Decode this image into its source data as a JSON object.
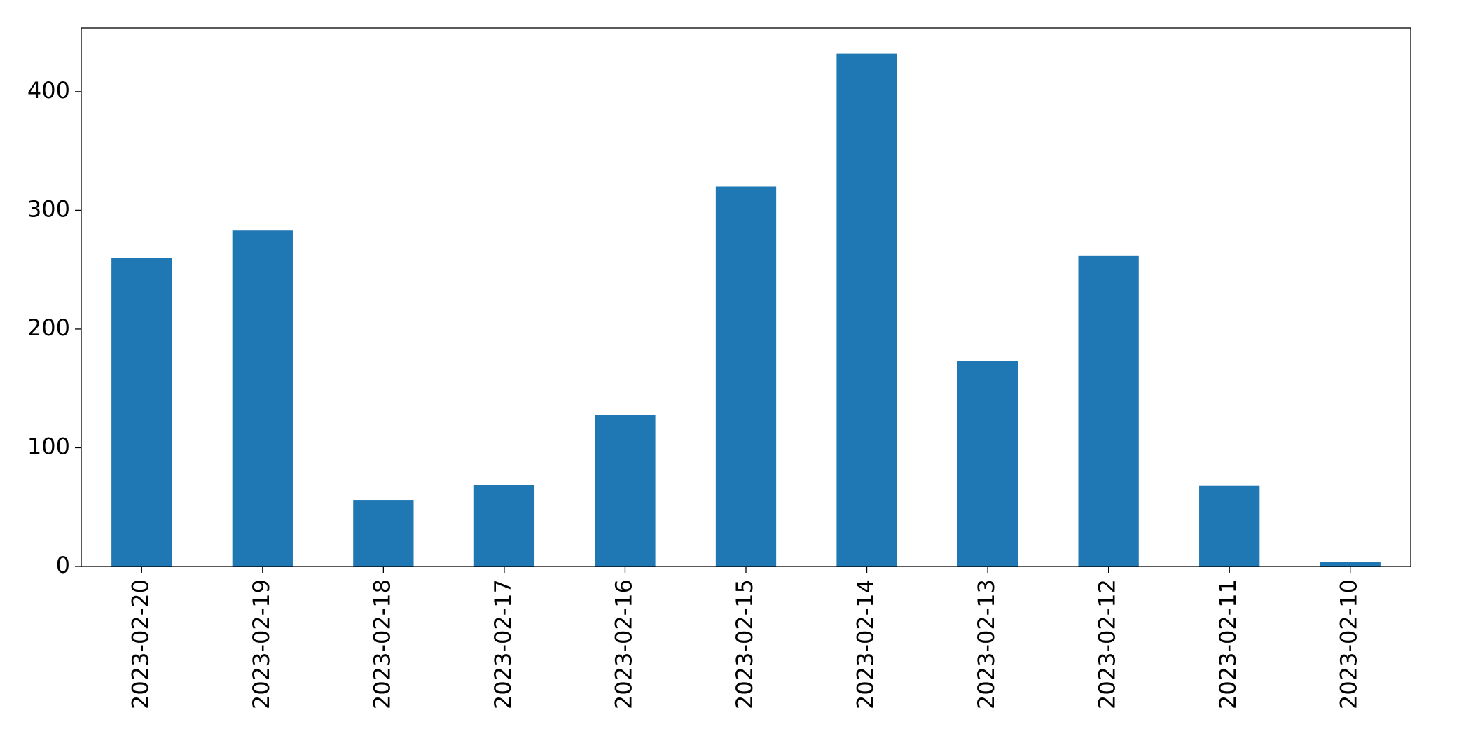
{
  "chart_data": {
    "type": "bar",
    "categories": [
      "2023-02-20",
      "2023-02-19",
      "2023-02-18",
      "2023-02-17",
      "2023-02-16",
      "2023-02-15",
      "2023-02-14",
      "2023-02-13",
      "2023-02-12",
      "2023-02-11",
      "2023-02-10"
    ],
    "values": [
      260,
      283,
      56,
      69,
      128,
      320,
      432,
      173,
      262,
      68,
      4
    ],
    "color": "#1f77b4",
    "ylim": [
      0,
      453.6
    ],
    "yticks": [
      0,
      100,
      200,
      300,
      400
    ],
    "grid": false
  }
}
